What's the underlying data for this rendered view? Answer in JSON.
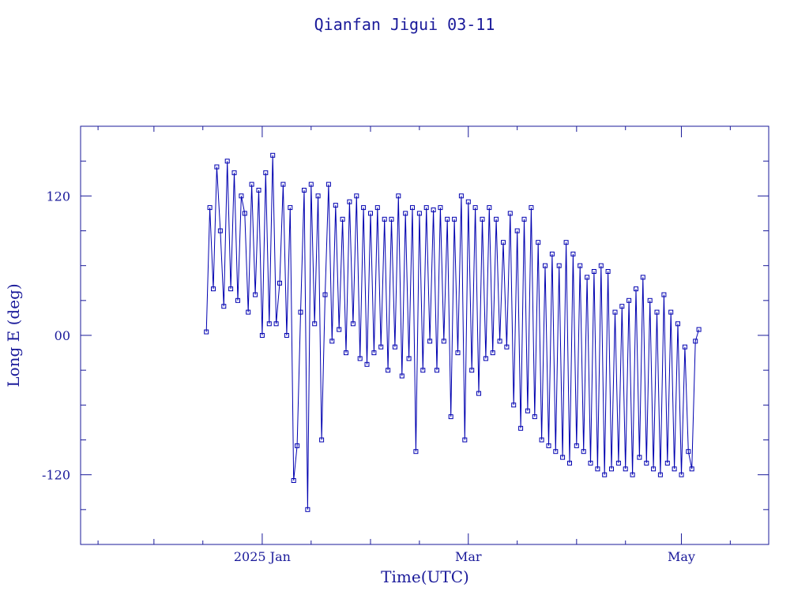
{
  "chart_data": {
    "type": "scatter",
    "title": "Qianfan Jigui 03-11",
    "xlabel": "Time(UTC)",
    "ylabel": "Long E (deg)",
    "x_tick_labels": [
      "2025 Jan",
      "Mar",
      "May"
    ],
    "y_tick_labels": [
      "-120",
      "00",
      "120"
    ],
    "y_ticks": [
      -120,
      0,
      120
    ],
    "xlim": [
      "2024-11-10",
      "2025-05-26"
    ],
    "ylim": [
      -180,
      180
    ],
    "grid": false,
    "colors": {
      "axis": "#1a1a9a",
      "line": "#0000b0",
      "marker": "#0000b0"
    },
    "series": [
      {
        "x": [
          "2024-12-16",
          "2024-12-17",
          "2024-12-18",
          "2024-12-19",
          "2024-12-20",
          "2024-12-21",
          "2024-12-22",
          "2024-12-23",
          "2024-12-24",
          "2024-12-25",
          "2024-12-26",
          "2024-12-27",
          "2024-12-28",
          "2024-12-29",
          "2024-12-30",
          "2024-12-31",
          "2025-01-01",
          "2025-01-02",
          "2025-01-03",
          "2025-01-04",
          "2025-01-05",
          "2025-01-06",
          "2025-01-07",
          "2025-01-08",
          "2025-01-09",
          "2025-01-10",
          "2025-01-11",
          "2025-01-12",
          "2025-01-13",
          "2025-01-14",
          "2025-01-15",
          "2025-01-16",
          "2025-01-17",
          "2025-01-18",
          "2025-01-19",
          "2025-01-20",
          "2025-01-21",
          "2025-01-22",
          "2025-01-23",
          "2025-01-24",
          "2025-01-25",
          "2025-01-26",
          "2025-01-27",
          "2025-01-28",
          "2025-01-29",
          "2025-01-30",
          "2025-01-31",
          "2025-02-01",
          "2025-02-02",
          "2025-02-03",
          "2025-02-04",
          "2025-02-05",
          "2025-02-06",
          "2025-02-07",
          "2025-02-08",
          "2025-02-09",
          "2025-02-10",
          "2025-02-11",
          "2025-02-12",
          "2025-02-13",
          "2025-02-14",
          "2025-02-15",
          "2025-02-16",
          "2025-02-17",
          "2025-02-18",
          "2025-02-19",
          "2025-02-20",
          "2025-02-21",
          "2025-02-22",
          "2025-02-23",
          "2025-02-24",
          "2025-02-25",
          "2025-02-26",
          "2025-02-27",
          "2025-02-28",
          "2025-03-01",
          "2025-03-02",
          "2025-03-03",
          "2025-03-04",
          "2025-03-05",
          "2025-03-06",
          "2025-03-07",
          "2025-03-08",
          "2025-03-09",
          "2025-03-10",
          "2025-03-11",
          "2025-03-12",
          "2025-03-13",
          "2025-03-14",
          "2025-03-15",
          "2025-03-16",
          "2025-03-17",
          "2025-03-18",
          "2025-03-19",
          "2025-03-20",
          "2025-03-21",
          "2025-03-22",
          "2025-03-23",
          "2025-03-24",
          "2025-03-25",
          "2025-03-26",
          "2025-03-27",
          "2025-03-28",
          "2025-03-29",
          "2025-03-30",
          "2025-03-31",
          "2025-04-01",
          "2025-04-02",
          "2025-04-03",
          "2025-04-04",
          "2025-04-05",
          "2025-04-06",
          "2025-04-07",
          "2025-04-08",
          "2025-04-09",
          "2025-04-10",
          "2025-04-11",
          "2025-04-12",
          "2025-04-13",
          "2025-04-14",
          "2025-04-15",
          "2025-04-16",
          "2025-04-17",
          "2025-04-18",
          "2025-04-19",
          "2025-04-20",
          "2025-04-21",
          "2025-04-22",
          "2025-04-23",
          "2025-04-24",
          "2025-04-25",
          "2025-04-26",
          "2025-04-27",
          "2025-04-28",
          "2025-04-29",
          "2025-04-30",
          "2025-05-01",
          "2025-05-02",
          "2025-05-03",
          "2025-05-04",
          "2025-05-05",
          "2025-05-06"
        ],
        "y": [
          3,
          110,
          40,
          145,
          90,
          25,
          150,
          40,
          140,
          30,
          120,
          105,
          20,
          130,
          35,
          125,
          0,
          140,
          10,
          155,
          10,
          45,
          130,
          0,
          110,
          -125,
          -95,
          20,
          125,
          -150,
          130,
          10,
          120,
          -90,
          35,
          130,
          -5,
          112,
          5,
          100,
          -15,
          115,
          10,
          120,
          -20,
          110,
          -25,
          105,
          -15,
          110,
          -10,
          100,
          -30,
          100,
          -10,
          120,
          -35,
          105,
          -20,
          110,
          -100,
          105,
          -30,
          110,
          -5,
          108,
          -30,
          110,
          -5,
          100,
          -70,
          100,
          -15,
          120,
          -90,
          115,
          -30,
          110,
          -50,
          100,
          -20,
          110,
          -15,
          100,
          -5,
          80,
          -10,
          105,
          -60,
          90,
          -80,
          100,
          -65,
          110,
          -70,
          80,
          -90,
          60,
          -95,
          70,
          -100,
          60,
          -105,
          80,
          -110,
          70,
          -95,
          60,
          -100,
          50,
          -110,
          55,
          -115,
          60,
          -120,
          55,
          -115,
          20,
          -110,
          25,
          -115,
          30,
          -120,
          40,
          -105,
          50,
          -110,
          30,
          -115,
          20,
          -120,
          35,
          -110,
          20,
          -115,
          10,
          -120,
          -10,
          -100,
          -115,
          -5,
          5
        ]
      }
    ]
  }
}
